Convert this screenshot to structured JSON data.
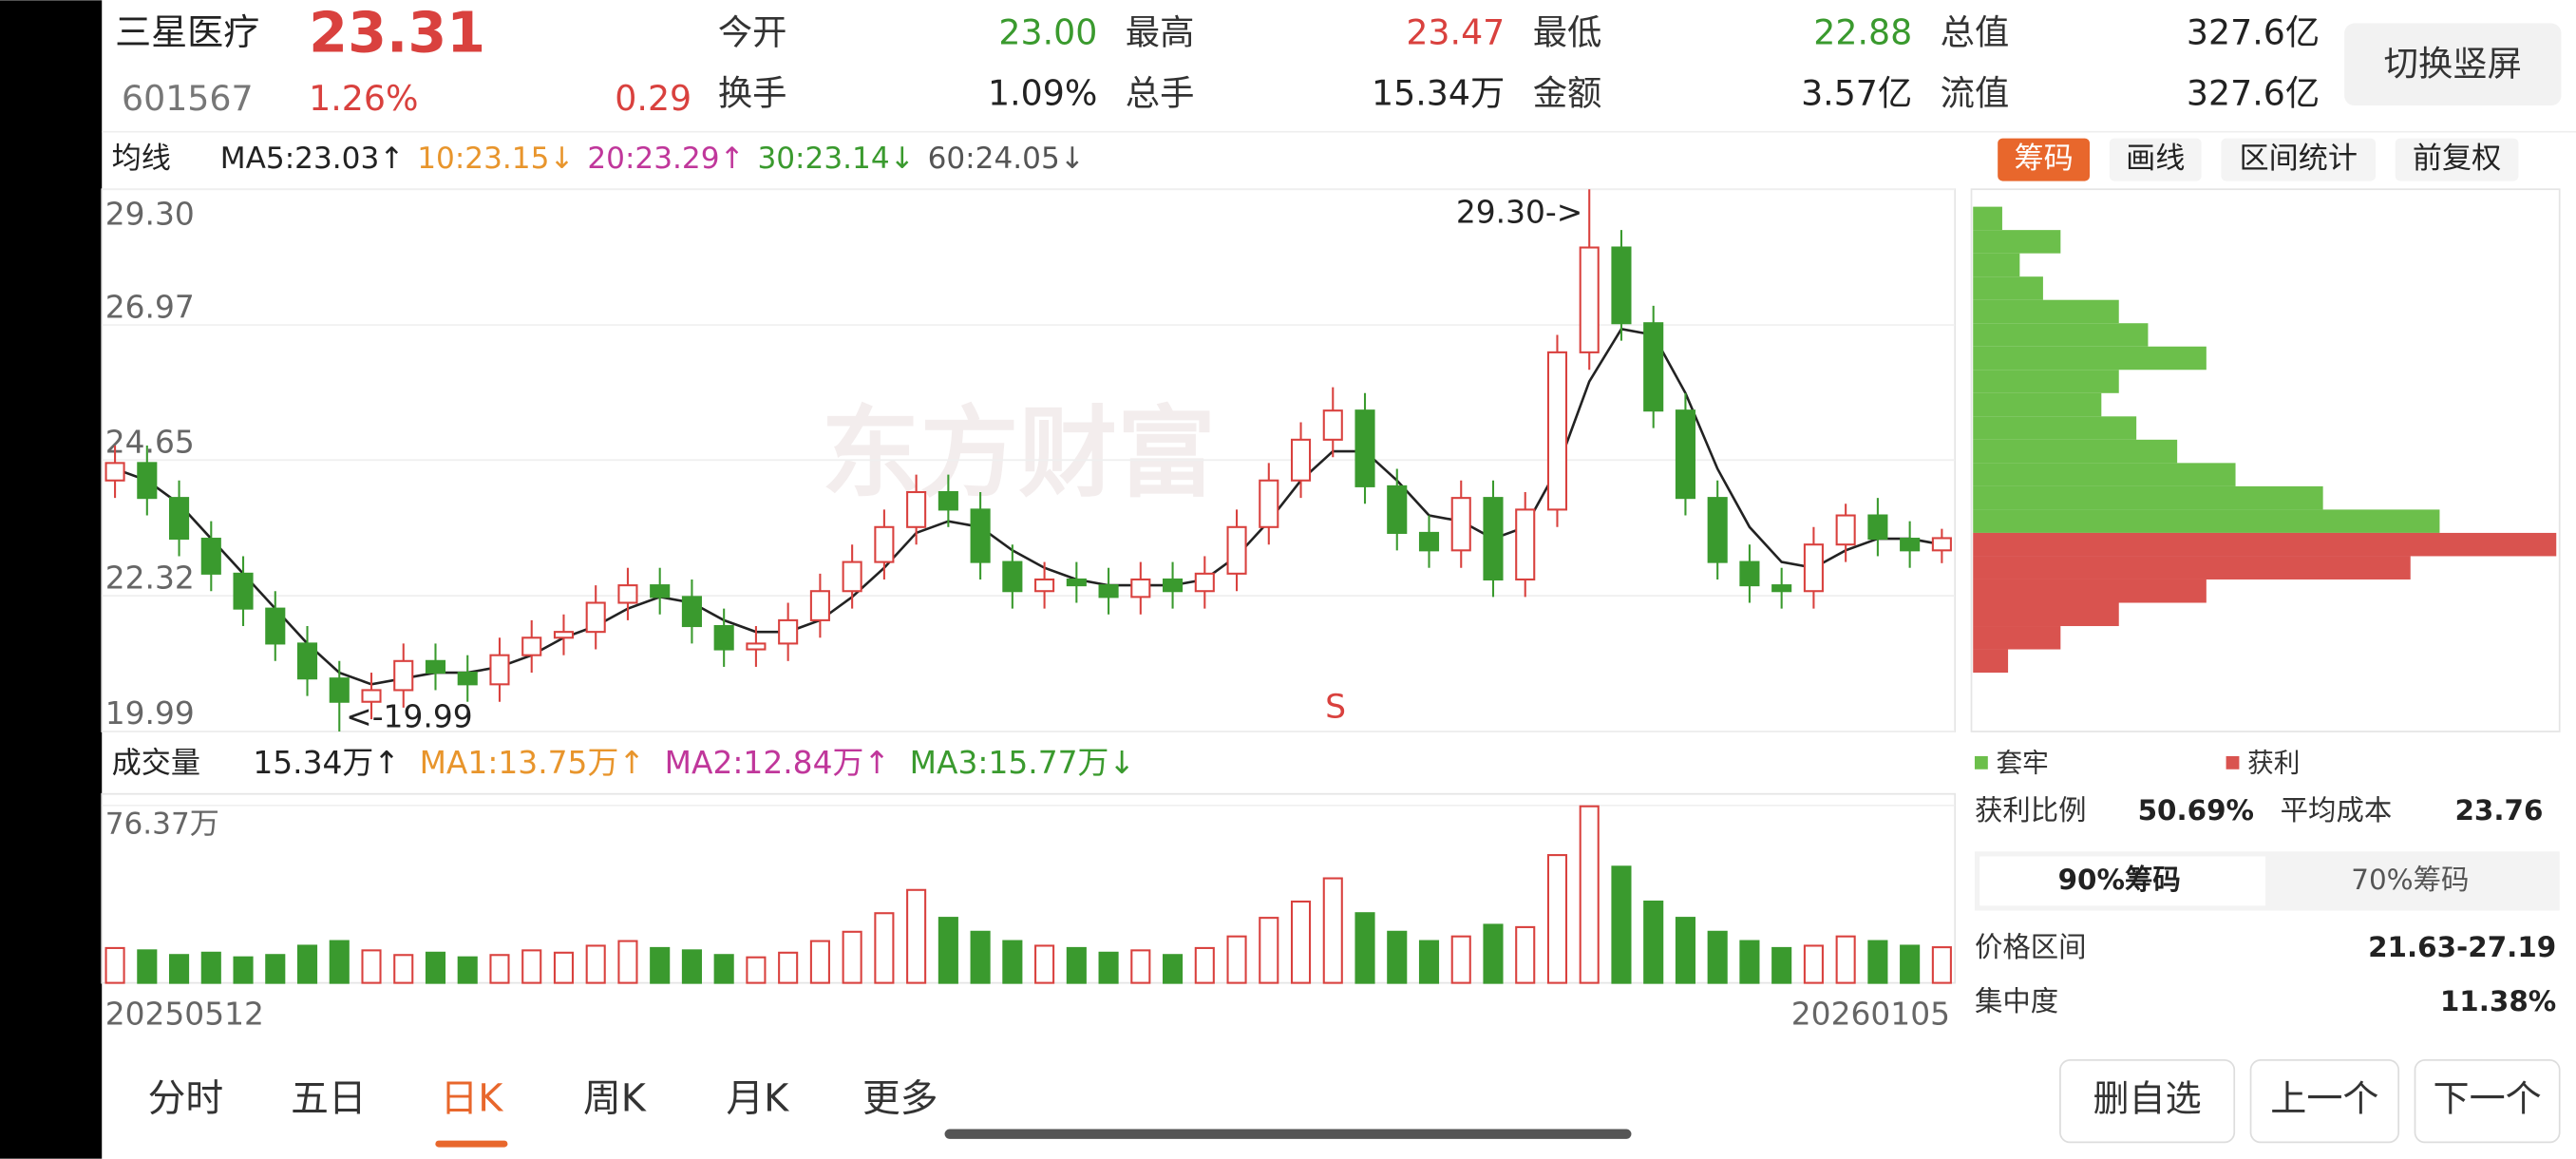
{
  "header": {
    "name": "三星医疗",
    "price": "23.31",
    "code": "601567",
    "change_pct": "1.26%",
    "change": "0.29",
    "quotes": [
      {
        "label": "今开",
        "value": "23.00",
        "color": "#3a9a2e"
      },
      {
        "label": "最高",
        "value": "23.47",
        "color": "#d9413e"
      },
      {
        "label": "最低",
        "value": "22.88",
        "color": "#3a9a2e"
      },
      {
        "label": "总值",
        "value": "327.6亿",
        "color": "#222222"
      },
      {
        "label": "换手",
        "value": "1.09%",
        "color": "#222222"
      },
      {
        "label": "总手",
        "value": "15.34万",
        "color": "#222222"
      },
      {
        "label": "金额",
        "value": "3.57亿",
        "color": "#222222"
      },
      {
        "label": "流值",
        "value": "327.6亿",
        "color": "#222222"
      }
    ],
    "button": "切换竖屏"
  },
  "ma_legend": {
    "selector": "均线",
    "items": [
      {
        "text": "MA5:23.03↑",
        "color": "#222222"
      },
      {
        "text": "10:23.15↓",
        "color": "#e8952c"
      },
      {
        "text": "20:23.29↑",
        "color": "#c0379b"
      },
      {
        "text": "30:23.14↓",
        "color": "#3a9a2e"
      },
      {
        "text": "60:24.05↓",
        "color": "#555555"
      }
    ]
  },
  "chip_tabs": [
    "筹码",
    "画线",
    "区间统计",
    "前复权"
  ],
  "chart_data": [
    {
      "type": "candlestick",
      "watermark": "东方财富",
      "annotations": [
        "29.30->",
        "<-19.99",
        "S"
      ],
      "ylim": [
        19.99,
        29.3
      ],
      "yticks": [
        {
          "value": 29.3,
          "label": "29.30"
        },
        26.97,
        24.65,
        22.32,
        19.99
      ],
      "grid": true,
      "up_color": "#d9413e",
      "down_color": "#3a9a2e",
      "open": [
        24.3,
        24.6,
        24.0,
        23.3,
        22.7,
        22.1,
        21.5,
        20.9,
        20.5,
        20.7,
        21.2,
        21.0,
        20.8,
        21.3,
        21.6,
        21.7,
        22.2,
        22.5,
        22.3,
        21.8,
        21.4,
        21.5,
        21.9,
        22.4,
        22.9,
        23.5,
        24.1,
        23.8,
        22.9,
        22.4,
        22.6,
        22.5,
        22.3,
        22.6,
        22.4,
        22.7,
        23.5,
        24.3,
        25.0,
        25.5,
        24.2,
        23.4,
        23.1,
        24.0,
        22.6,
        23.8,
        26.5,
        28.3,
        27.0,
        25.5,
        24.0,
        22.9,
        22.5,
        22.4,
        23.2,
        23.7,
        23.3,
        23.1
      ],
      "high": [
        24.9,
        24.9,
        24.3,
        23.6,
        23.0,
        22.4,
        21.8,
        21.2,
        21.0,
        21.5,
        21.5,
        21.3,
        21.6,
        21.9,
        22.0,
        22.5,
        22.8,
        22.8,
        22.6,
        22.1,
        21.8,
        22.2,
        22.7,
        23.2,
        23.8,
        24.4,
        24.4,
        24.1,
        23.2,
        22.9,
        22.9,
        22.8,
        22.9,
        22.9,
        23.0,
        23.8,
        24.6,
        25.3,
        25.9,
        25.8,
        24.5,
        23.7,
        24.3,
        24.3,
        24.1,
        26.8,
        29.3,
        28.6,
        27.3,
        25.8,
        24.3,
        23.2,
        22.8,
        23.5,
        23.9,
        24.0,
        23.6,
        23.47
      ],
      "low": [
        24.0,
        23.7,
        23.0,
        22.4,
        21.8,
        21.2,
        20.6,
        19.99,
        20.2,
        20.4,
        20.7,
        20.5,
        20.5,
        21.0,
        21.3,
        21.4,
        21.9,
        22.0,
        21.5,
        21.1,
        21.1,
        21.2,
        21.6,
        22.1,
        22.6,
        23.2,
        23.5,
        22.6,
        22.1,
        22.1,
        22.2,
        22.0,
        22.0,
        22.1,
        22.1,
        22.4,
        23.2,
        24.0,
        24.7,
        23.9,
        23.1,
        22.8,
        22.8,
        22.3,
        22.3,
        23.5,
        26.2,
        26.7,
        25.2,
        23.7,
        22.6,
        22.2,
        22.1,
        22.1,
        22.9,
        23.0,
        22.8,
        22.88
      ],
      "close": [
        24.6,
        24.0,
        23.3,
        22.7,
        22.1,
        21.5,
        20.9,
        20.5,
        20.7,
        21.2,
        21.0,
        20.8,
        21.3,
        21.6,
        21.7,
        22.2,
        22.5,
        22.3,
        21.8,
        21.4,
        21.5,
        21.9,
        22.4,
        22.9,
        23.5,
        24.1,
        23.8,
        22.9,
        22.4,
        22.6,
        22.5,
        22.3,
        22.6,
        22.4,
        22.7,
        23.5,
        24.3,
        25.0,
        25.5,
        24.2,
        23.4,
        23.1,
        24.0,
        22.6,
        23.8,
        26.5,
        28.3,
        27.0,
        25.5,
        24.0,
        22.9,
        22.5,
        22.4,
        23.2,
        23.7,
        23.3,
        23.1,
        23.31
      ],
      "lines": [
        {
          "color": "#222222",
          "values": [
            24.5,
            24.3,
            23.9,
            23.3,
            22.7,
            22.1,
            21.5,
            21.0,
            20.8,
            20.9,
            21.0,
            21.0,
            21.1,
            21.3,
            21.6,
            21.8,
            22.1,
            22.3,
            22.2,
            21.9,
            21.7,
            21.7,
            21.9,
            22.3,
            22.8,
            23.4,
            23.6,
            23.5,
            23.1,
            22.8,
            22.6,
            22.5,
            22.5,
            22.5,
            22.6,
            23.0,
            23.6,
            24.3,
            24.8,
            24.8,
            24.3,
            23.7,
            23.6,
            23.3,
            23.5,
            24.5,
            26.0,
            26.9,
            26.8,
            25.8,
            24.5,
            23.5,
            22.9,
            22.8,
            23.1,
            23.3,
            23.3,
            23.2
          ]
        }
      ]
    },
    {
      "type": "bar",
      "legend": {
        "selector": "成交量",
        "items": [
          {
            "text": "15.34万↑",
            "color": "#222222"
          },
          {
            "text": "MA1:13.75万↑",
            "color": "#e8952c"
          },
          {
            "text": "MA2:12.84万↑",
            "color": "#c0379b"
          },
          {
            "text": "MA3:15.77万↓",
            "color": "#3a9a2e"
          }
        ]
      },
      "ylim": [
        0,
        76.37
      ],
      "yticks": [
        {
          "value": 76.37,
          "label": "76.37万"
        }
      ],
      "x_labels": [
        "20250512",
        "20260105"
      ],
      "values": [
        15,
        14,
        12,
        13,
        11,
        12,
        16,
        18,
        14,
        12,
        13,
        11,
        12,
        14,
        13,
        16,
        18,
        15,
        14,
        12,
        11,
        13,
        18,
        22,
        30,
        40,
        28,
        22,
        18,
        16,
        15,
        13,
        14,
        12,
        15,
        20,
        28,
        35,
        45,
        30,
        22,
        18,
        20,
        25,
        24,
        55,
        76,
        50,
        35,
        28,
        22,
        18,
        15,
        16,
        20,
        18,
        16,
        15.34
      ]
    },
    {
      "type": "chip_distribution",
      "xlim": [
        0,
        100
      ],
      "levels": [
        28.8,
        28.4,
        28.0,
        27.6,
        27.2,
        26.8,
        26.4,
        26.0,
        25.6,
        25.2,
        24.8,
        24.4,
        24.0,
        23.6,
        23.2,
        22.8,
        22.4,
        22.0,
        21.6,
        21.2
      ],
      "series": [
        {
          "name": "套牢",
          "color": "#6cbf4b",
          "values": [
            5,
            15,
            8,
            12,
            25,
            30,
            40,
            25,
            22,
            28,
            35,
            45,
            60,
            80,
            0,
            0,
            0,
            0,
            0,
            0
          ]
        },
        {
          "name": "获利",
          "color": "#d9534f",
          "values": [
            0,
            0,
            0,
            0,
            0,
            0,
            0,
            0,
            0,
            0,
            0,
            0,
            0,
            0,
            100,
            75,
            40,
            25,
            15,
            6
          ]
        }
      ]
    }
  ],
  "chip_stats": {
    "profit_ratio_label": "获利比例",
    "profit_ratio": "50.69%",
    "avg_cost_label": "平均成本",
    "avg_cost": "23.76",
    "tabs": [
      "90%筹码",
      "70%筹码"
    ],
    "range_label": "价格区间",
    "range": "21.63-27.19",
    "concentration_label": "集中度",
    "concentration": "11.38%"
  },
  "nav": {
    "tabs": [
      "分时",
      "五日",
      "日K",
      "周K",
      "月K",
      "更多"
    ],
    "selected": 2
  },
  "buttons": [
    "删自选",
    "上一个",
    "下一个"
  ]
}
